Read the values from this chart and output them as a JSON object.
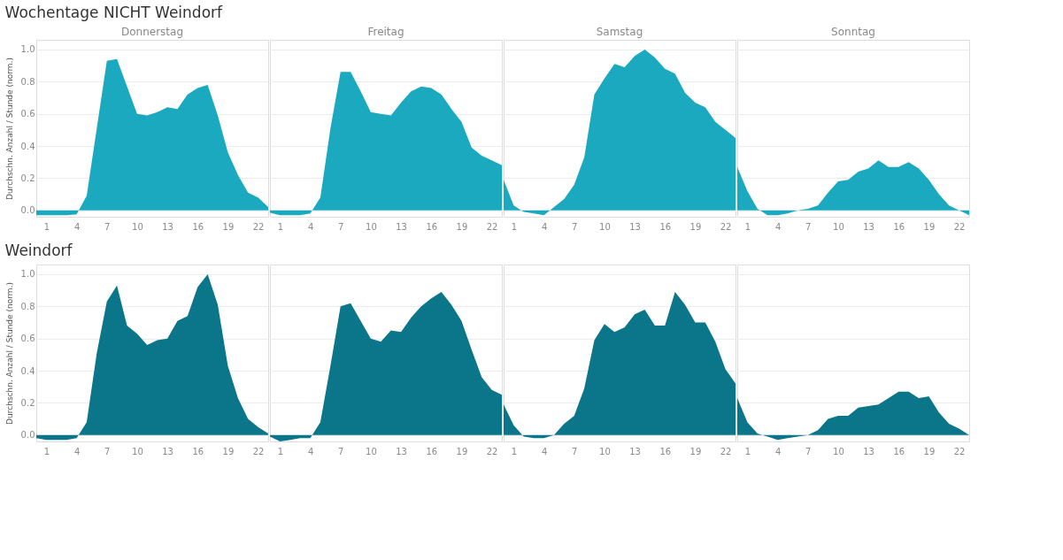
{
  "chart_data": [
    {
      "type": "area",
      "title": "Wochentage NICHT Weindorf",
      "subtitle": "Donnerstag",
      "ylabel": "Durchschn. Anzahl / Stunde (norm.)",
      "x": [
        0,
        1,
        2,
        3,
        4,
        5,
        6,
        7,
        8,
        9,
        10,
        11,
        12,
        13,
        14,
        15,
        16,
        17,
        18,
        19,
        20,
        21,
        22,
        23
      ],
      "xlim": [
        0,
        23
      ],
      "xticks": [
        1,
        4,
        7,
        10,
        13,
        16,
        19,
        22
      ],
      "ylim": [
        -0.04,
        1.06
      ],
      "yticks": [
        {
          "value": 0,
          "label": "0.0"
        },
        {
          "value": 0.2,
          "label": "0.2"
        },
        {
          "value": 0.4,
          "label": "0.4"
        },
        {
          "value": 0.6,
          "label": "0.6"
        },
        {
          "value": 0.8,
          "label": "0.8"
        },
        {
          "value": 1,
          "label": "1.0"
        }
      ],
      "grid": "y",
      "series": [
        {
          "color": "#1ba9bf",
          "values": [
            -0.03,
            -0.03,
            -0.03,
            -0.03,
            -0.025,
            0.09,
            0.51,
            0.93,
            0.94,
            0.77,
            0.6,
            0.59,
            0.61,
            0.64,
            0.63,
            0.72,
            0.76,
            0.78,
            0.59,
            0.36,
            0.22,
            0.11,
            0.08,
            0.02
          ]
        }
      ]
    },
    {
      "type": "area",
      "subtitle": "Freitag",
      "x": [
        0,
        1,
        2,
        3,
        4,
        5,
        6,
        7,
        8,
        9,
        10,
        11,
        12,
        13,
        14,
        15,
        16,
        17,
        18,
        19,
        20,
        21,
        22,
        23
      ],
      "xlim": [
        0,
        23
      ],
      "xticks": [
        1,
        4,
        7,
        10,
        13,
        16,
        19,
        22
      ],
      "ylim": [
        -0.04,
        1.06
      ],
      "tick_labels": "x",
      "grid": "y",
      "series": [
        {
          "color": "#1ba9bf",
          "values": [
            -0.015,
            -0.03,
            -0.03,
            -0.03,
            -0.02,
            0.08,
            0.51,
            0.86,
            0.86,
            0.74,
            0.61,
            0.6,
            0.59,
            0.67,
            0.74,
            0.77,
            0.76,
            0.72,
            0.63,
            0.55,
            0.39,
            0.34,
            0.31,
            0.28
          ]
        }
      ]
    },
    {
      "type": "area",
      "subtitle": "Samstag",
      "x": [
        0,
        1,
        2,
        3,
        4,
        5,
        6,
        7,
        8,
        9,
        10,
        11,
        12,
        13,
        14,
        15,
        16,
        17,
        18,
        19,
        20,
        21,
        22,
        23
      ],
      "xlim": [
        0,
        23
      ],
      "xticks": [
        1,
        4,
        7,
        10,
        13,
        16,
        19,
        22
      ],
      "ylim": [
        -0.04,
        1.06
      ],
      "tick_labels": "x",
      "grid": "y",
      "series": [
        {
          "color": "#1ba9bf",
          "values": [
            0.19,
            0.03,
            -0.01,
            -0.02,
            -0.03,
            0.02,
            0.07,
            0.16,
            0.33,
            0.72,
            0.82,
            0.91,
            0.89,
            0.96,
            1.0,
            0.95,
            0.88,
            0.85,
            0.73,
            0.67,
            0.64,
            0.55,
            0.5,
            0.45
          ]
        }
      ]
    },
    {
      "type": "area",
      "subtitle": "Sonntag",
      "x": [
        0,
        1,
        2,
        3,
        4,
        5,
        6,
        7,
        8,
        9,
        10,
        11,
        12,
        13,
        14,
        15,
        16,
        17,
        18,
        19,
        20,
        21,
        22,
        23
      ],
      "xlim": [
        0,
        23
      ],
      "xticks": [
        1,
        4,
        7,
        10,
        13,
        16,
        19,
        22
      ],
      "ylim": [
        -0.04,
        1.06
      ],
      "tick_labels": "x",
      "grid": "y",
      "series": [
        {
          "color": "#1ba9bf",
          "values": [
            0.27,
            0.12,
            0.01,
            -0.03,
            -0.03,
            -0.02,
            0.0,
            0.01,
            0.03,
            0.11,
            0.18,
            0.19,
            0.24,
            0.26,
            0.31,
            0.27,
            0.27,
            0.3,
            0.26,
            0.19,
            0.1,
            0.03,
            0.0,
            -0.03
          ]
        }
      ]
    },
    {
      "type": "area",
      "title": "Weindorf",
      "ylabel": "Durchschn. Anzahl / Stunde (norm.)",
      "x": [
        0,
        1,
        2,
        3,
        4,
        5,
        6,
        7,
        8,
        9,
        10,
        11,
        12,
        13,
        14,
        15,
        16,
        17,
        18,
        19,
        20,
        21,
        22,
        23
      ],
      "xlim": [
        0,
        23
      ],
      "xticks": [
        1,
        4,
        7,
        10,
        13,
        16,
        19,
        22
      ],
      "ylim": [
        -0.04,
        1.06
      ],
      "yticks": [
        {
          "value": 0,
          "label": "0.0"
        },
        {
          "value": 0.2,
          "label": "0.2"
        },
        {
          "value": 0.4,
          "label": "0.4"
        },
        {
          "value": 0.6,
          "label": "0.6"
        },
        {
          "value": 0.8,
          "label": "0.8"
        },
        {
          "value": 1,
          "label": "1.0"
        }
      ],
      "grid": "y",
      "series": [
        {
          "color": "#0b7589",
          "values": [
            -0.02,
            -0.03,
            -0.03,
            -0.03,
            -0.02,
            0.08,
            0.51,
            0.83,
            0.93,
            0.68,
            0.63,
            0.56,
            0.59,
            0.6,
            0.71,
            0.74,
            0.92,
            1.0,
            0.81,
            0.43,
            0.23,
            0.1,
            0.05,
            0.01
          ]
        }
      ]
    },
    {
      "type": "area",
      "x": [
        0,
        1,
        2,
        3,
        4,
        5,
        6,
        7,
        8,
        9,
        10,
        11,
        12,
        13,
        14,
        15,
        16,
        17,
        18,
        19,
        20,
        21,
        22,
        23
      ],
      "xlim": [
        0,
        23
      ],
      "xticks": [
        1,
        4,
        7,
        10,
        13,
        16,
        19,
        22
      ],
      "ylim": [
        -0.04,
        1.06
      ],
      "tick_labels": "x",
      "grid": "y",
      "series": [
        {
          "color": "#0b7589",
          "values": [
            -0.01,
            -0.04,
            -0.03,
            -0.02,
            -0.02,
            0.08,
            0.43,
            0.8,
            0.82,
            0.71,
            0.6,
            0.58,
            0.65,
            0.64,
            0.73,
            0.8,
            0.85,
            0.89,
            0.81,
            0.71,
            0.53,
            0.36,
            0.28,
            0.25
          ]
        }
      ]
    },
    {
      "type": "area",
      "x": [
        0,
        1,
        2,
        3,
        4,
        5,
        6,
        7,
        8,
        9,
        10,
        11,
        12,
        13,
        14,
        15,
        16,
        17,
        18,
        19,
        20,
        21,
        22,
        23
      ],
      "xlim": [
        0,
        23
      ],
      "xticks": [
        1,
        4,
        7,
        10,
        13,
        16,
        19,
        22
      ],
      "ylim": [
        -0.04,
        1.06
      ],
      "tick_labels": "x",
      "grid": "y",
      "series": [
        {
          "color": "#0b7589",
          "values": [
            0.19,
            0.06,
            -0.01,
            -0.02,
            -0.02,
            0.0,
            0.07,
            0.12,
            0.29,
            0.59,
            0.69,
            0.64,
            0.67,
            0.75,
            0.78,
            0.68,
            0.68,
            0.89,
            0.81,
            0.7,
            0.7,
            0.58,
            0.41,
            0.32
          ]
        }
      ]
    },
    {
      "type": "area",
      "x": [
        0,
        1,
        2,
        3,
        4,
        5,
        6,
        7,
        8,
        9,
        10,
        11,
        12,
        13,
        14,
        15,
        16,
        17,
        18,
        19,
        20,
        21,
        22,
        23
      ],
      "xlim": [
        0,
        23
      ],
      "xticks": [
        1,
        4,
        7,
        10,
        13,
        16,
        19,
        22
      ],
      "ylim": [
        -0.04,
        1.06
      ],
      "tick_labels": "x",
      "grid": "y",
      "series": [
        {
          "color": "#0b7589",
          "values": [
            0.23,
            0.08,
            0.01,
            -0.01,
            -0.03,
            -0.02,
            -0.01,
            0.0,
            0.03,
            0.1,
            0.12,
            0.12,
            0.17,
            0.18,
            0.19,
            0.23,
            0.27,
            0.27,
            0.23,
            0.24,
            0.14,
            0.07,
            0.04,
            0.0
          ]
        }
      ]
    }
  ]
}
